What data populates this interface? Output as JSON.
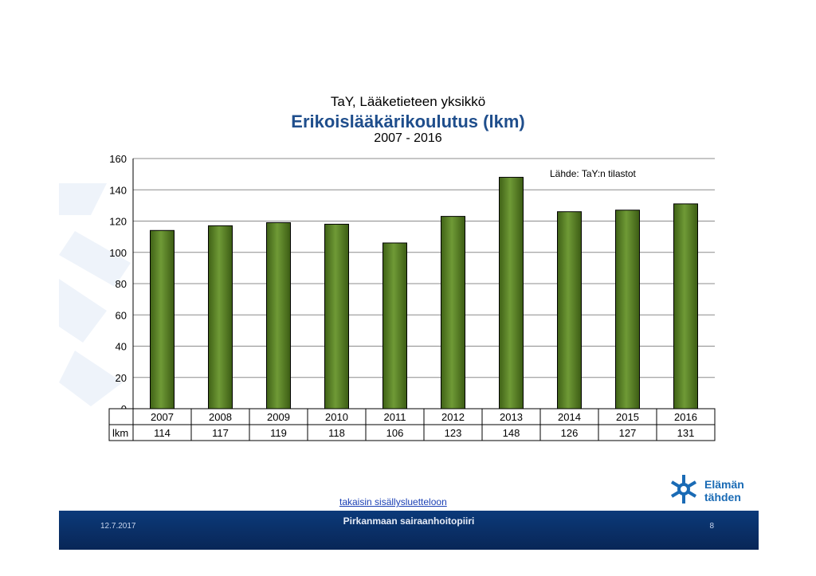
{
  "header": {
    "line1": "TaY, Lääketieteen yksikkö",
    "line2": "Erikoislääkärikoulutus (lkm)",
    "line3": "2007 - 2016"
  },
  "chart_data": {
    "type": "bar",
    "categories": [
      "2007",
      "2008",
      "2009",
      "2010",
      "2011",
      "2012",
      "2013",
      "2014",
      "2015",
      "2016"
    ],
    "values": [
      114,
      117,
      119,
      118,
      106,
      123,
      148,
      126,
      127,
      131
    ],
    "ylim": [
      0,
      160
    ],
    "yticks": [
      0,
      20,
      40,
      60,
      80,
      100,
      120,
      140,
      160
    ],
    "grid": true,
    "bar_color": "#4f7a1e",
    "annotation": "Lähde: TaY:n tilastot",
    "table_row_label": "lkm"
  },
  "link": {
    "label": "takaisin sisällysluetteloon"
  },
  "footer": {
    "date": "12.7.2017",
    "organization": "Pirkanmaan sairaanhoitopiiri",
    "page": "8"
  },
  "logo": {
    "icon": "star-of-life-icon",
    "line1": "Elämän",
    "line2": "tähden"
  }
}
